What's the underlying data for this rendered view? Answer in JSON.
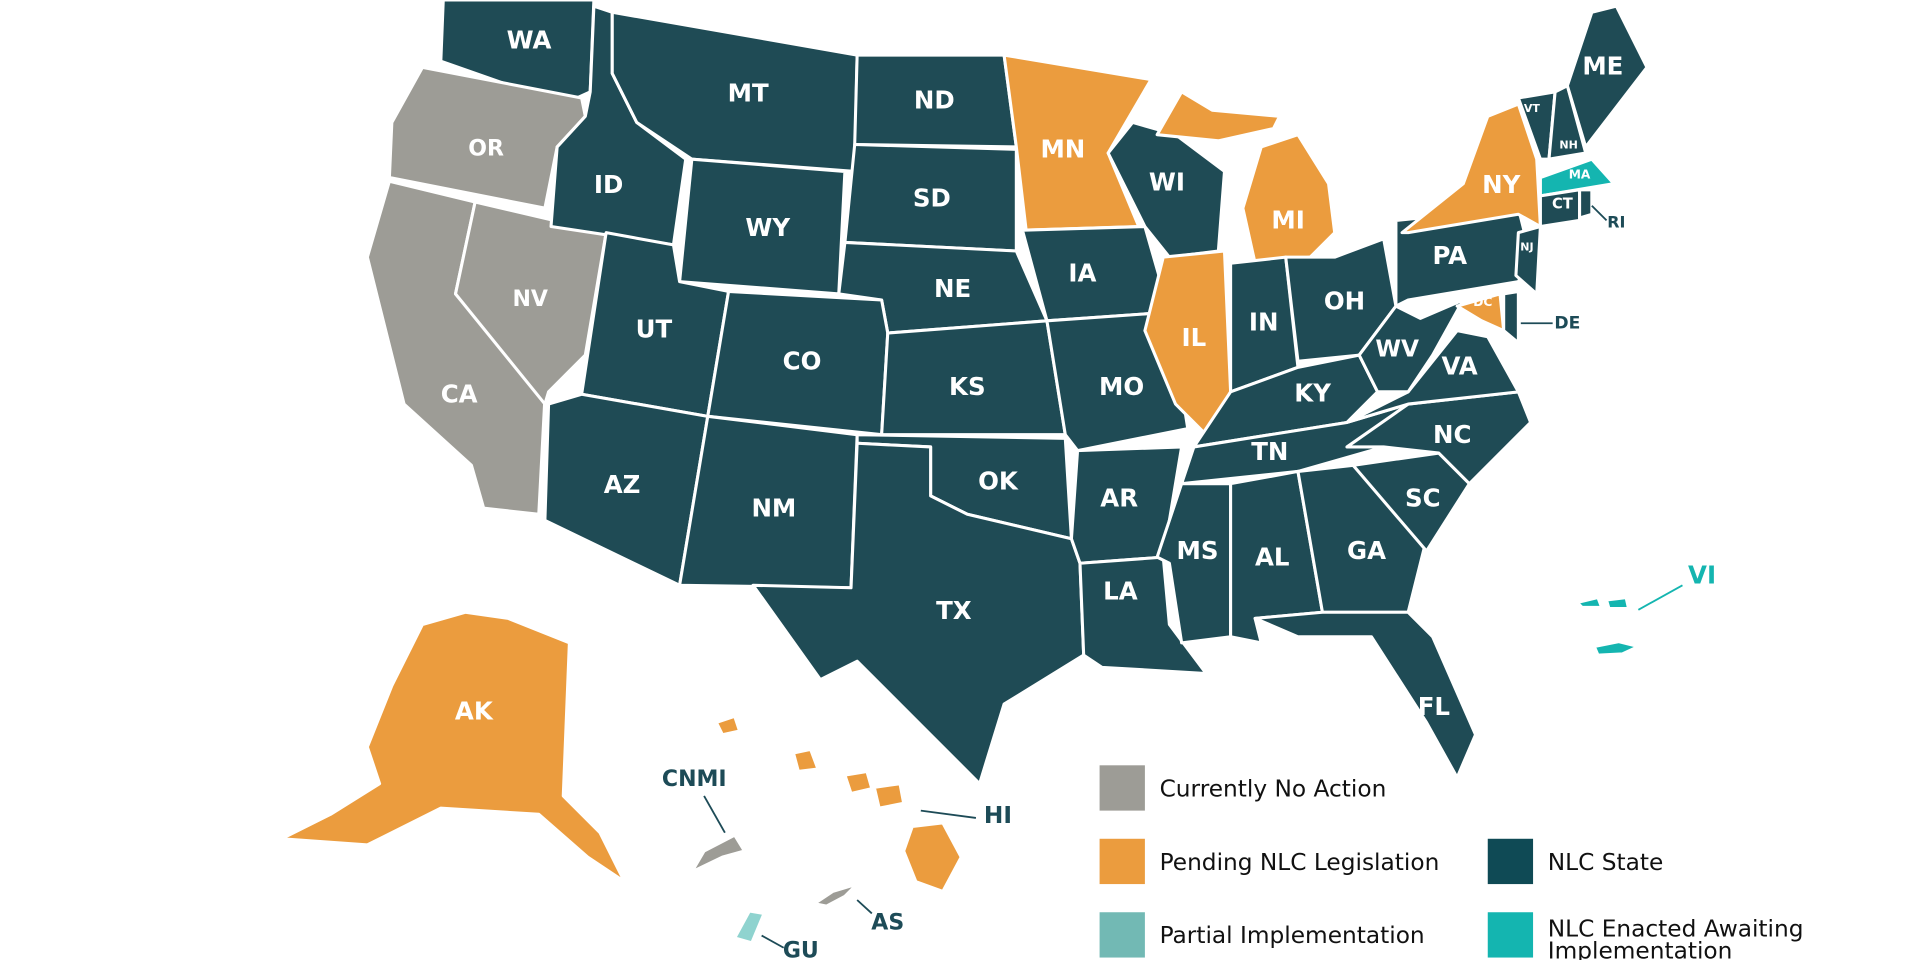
{
  "map": {
    "regions": [
      {
        "label": "WA",
        "color": "#1f4b55"
      },
      {
        "label": "OR",
        "color": "#9d9c96"
      },
      {
        "label": "CA",
        "color": "#9d9c96"
      },
      {
        "label": "NV",
        "color": "#9d9c96"
      },
      {
        "label": "ID",
        "color": "#1f4b55"
      },
      {
        "label": "MT",
        "color": "#1f4b55"
      },
      {
        "label": "WY",
        "color": "#1f4b55"
      },
      {
        "label": "ND",
        "color": "#1f4b55"
      },
      {
        "label": "SD",
        "color": "#1f4b55"
      },
      {
        "label": "NE",
        "color": "#1f4b55"
      },
      {
        "label": "UT",
        "color": "#1f4b55"
      },
      {
        "label": "CO",
        "color": "#1f4b55"
      },
      {
        "label": "AZ",
        "color": "#1f4b55"
      },
      {
        "label": "NM",
        "color": "#1f4b55"
      },
      {
        "label": "KS",
        "color": "#1f4b55"
      },
      {
        "label": "OK",
        "color": "#1f4b55"
      },
      {
        "label": "TX",
        "color": "#1f4b55"
      },
      {
        "label": "MN",
        "color": "#eb9c3e"
      },
      {
        "label": "IA",
        "color": "#1f4b55"
      },
      {
        "label": "MO",
        "color": "#1f4b55"
      },
      {
        "label": "AR",
        "color": "#1f4b55"
      },
      {
        "label": "LA",
        "color": "#1f4b55"
      },
      {
        "label": "WI",
        "color": "#1f4b55"
      },
      {
        "label": "IL",
        "color": "#eb9c3e"
      },
      {
        "label": "MI",
        "color": "#eb9c3e"
      },
      {
        "label": "IN",
        "color": "#1f4b55"
      },
      {
        "label": "OH",
        "color": "#1f4b55"
      },
      {
        "label": "KY",
        "color": "#1f4b55"
      },
      {
        "label": "TN",
        "color": "#1f4b55"
      },
      {
        "label": "MS",
        "color": "#1f4b55"
      },
      {
        "label": "AL",
        "color": "#1f4b55"
      },
      {
        "label": "GA",
        "color": "#1f4b55"
      },
      {
        "label": "FL",
        "color": "#1f4b55"
      },
      {
        "label": "SC",
        "color": "#1f4b55"
      },
      {
        "label": "NC",
        "color": "#1f4b55"
      },
      {
        "label": "VA",
        "color": "#1f4b55"
      },
      {
        "label": "WV",
        "color": "#1f4b55"
      },
      {
        "label": "PA",
        "color": "#1f4b55"
      },
      {
        "label": "NY",
        "color": "#eb9c3e"
      },
      {
        "label": "VT",
        "color": "#1f4b55"
      },
      {
        "label": "NH",
        "color": "#1f4b55"
      },
      {
        "label": "ME",
        "color": "#1f4b55"
      },
      {
        "label": "MA",
        "color": "#14b5b0"
      },
      {
        "label": "CT",
        "color": "#1f4b55"
      },
      {
        "label": "RI",
        "color": "#1f4b55"
      },
      {
        "label": "NJ",
        "color": "#1f4b55"
      },
      {
        "label": "DC",
        "color": "#eb9c3e"
      },
      {
        "label": "DE",
        "color": "#1f4b55"
      },
      {
        "label": "AK",
        "color": "#eb9c3e"
      },
      {
        "label": "HI",
        "color": "#eb9c3e"
      },
      {
        "label": "CNMI",
        "color": "#9d9c96"
      },
      {
        "label": "AS",
        "color": "#9d9c96"
      },
      {
        "label": "GU",
        "color": "#8fd3cf"
      },
      {
        "label": "VI",
        "color": "#14b5b0"
      }
    ],
    "legend": [
      {
        "label": "Currently No Action",
        "color": "#9d9c96"
      },
      {
        "label": "Pending NLC Legislation",
        "color": "#eb9c3e"
      },
      {
        "label": "Partial Implementation",
        "color": "#72b9b4"
      },
      {
        "label": "NLC State",
        "color": "#0f4a55"
      },
      {
        "label": "NLC Enacted Awaiting Implementation",
        "color": "#14b5b0"
      }
    ]
  }
}
